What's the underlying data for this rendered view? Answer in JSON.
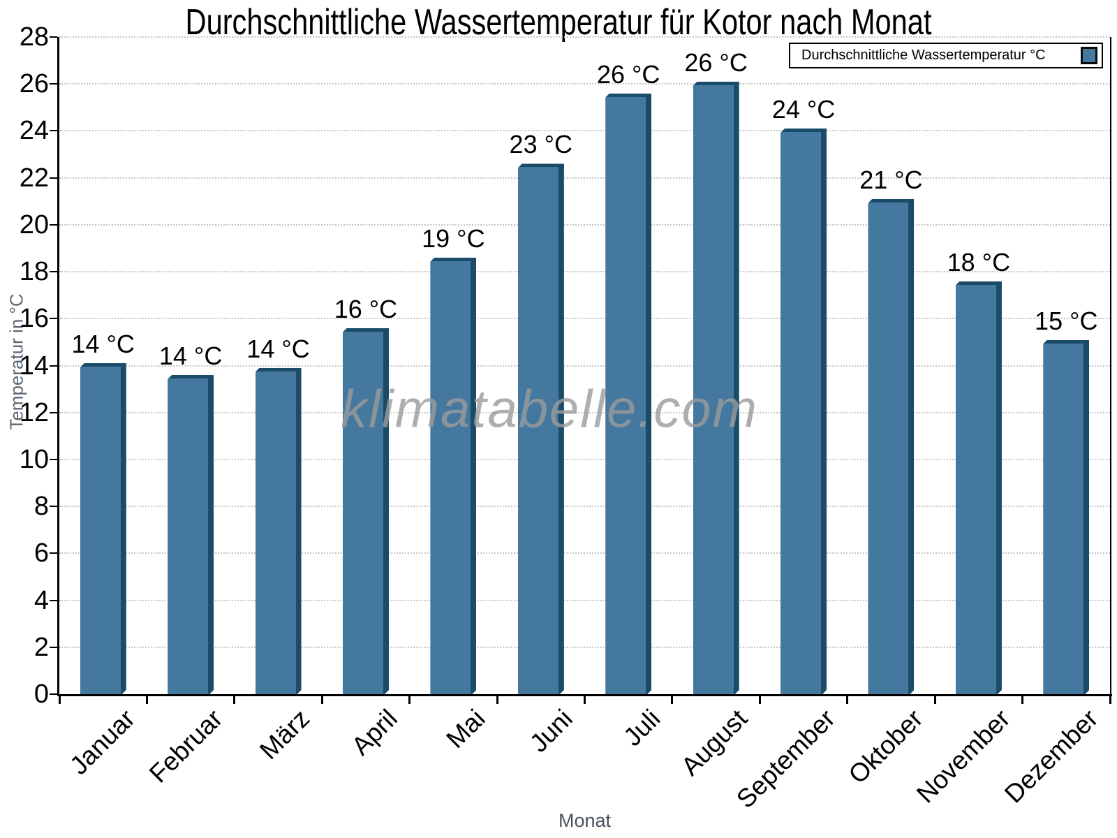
{
  "chart_data": {
    "type": "bar",
    "title": "Durchschnittliche Wassertemperatur für Kotor nach Monat",
    "xlabel": "Monat",
    "ylabel": "Temperatur in °C",
    "legend": {
      "label": "Durchschnittliche Wassertemperatur °C",
      "position": "top-right"
    },
    "watermark": "klimatabelle.com",
    "categories": [
      "Januar",
      "Februar",
      "März",
      "April",
      "Mai",
      "Juni",
      "Juli",
      "August",
      "September",
      "Oktober",
      "November",
      "Dezember"
    ],
    "values": [
      14.1,
      13.6,
      13.9,
      15.6,
      18.6,
      22.6,
      25.6,
      26.1,
      24.1,
      21.1,
      17.6,
      15.1
    ],
    "bar_labels": [
      "14 °C",
      "14 °C",
      "14 °C",
      "16 °C",
      "19 °C",
      "23 °C",
      "26 °C",
      "26 °C",
      "24 °C",
      "21 °C",
      "18 °C",
      "15 °C"
    ],
    "ylim": [
      0,
      28
    ],
    "ytick_step": 2,
    "grid": "horizontal-dotted",
    "colors": {
      "bar_face": "#45789f",
      "bar_edge": "#1a4c6a",
      "grid": "#c6c6c6",
      "axis": "#000000",
      "axis_title": "#5a6673",
      "watermark": "#9b9b9b"
    }
  }
}
